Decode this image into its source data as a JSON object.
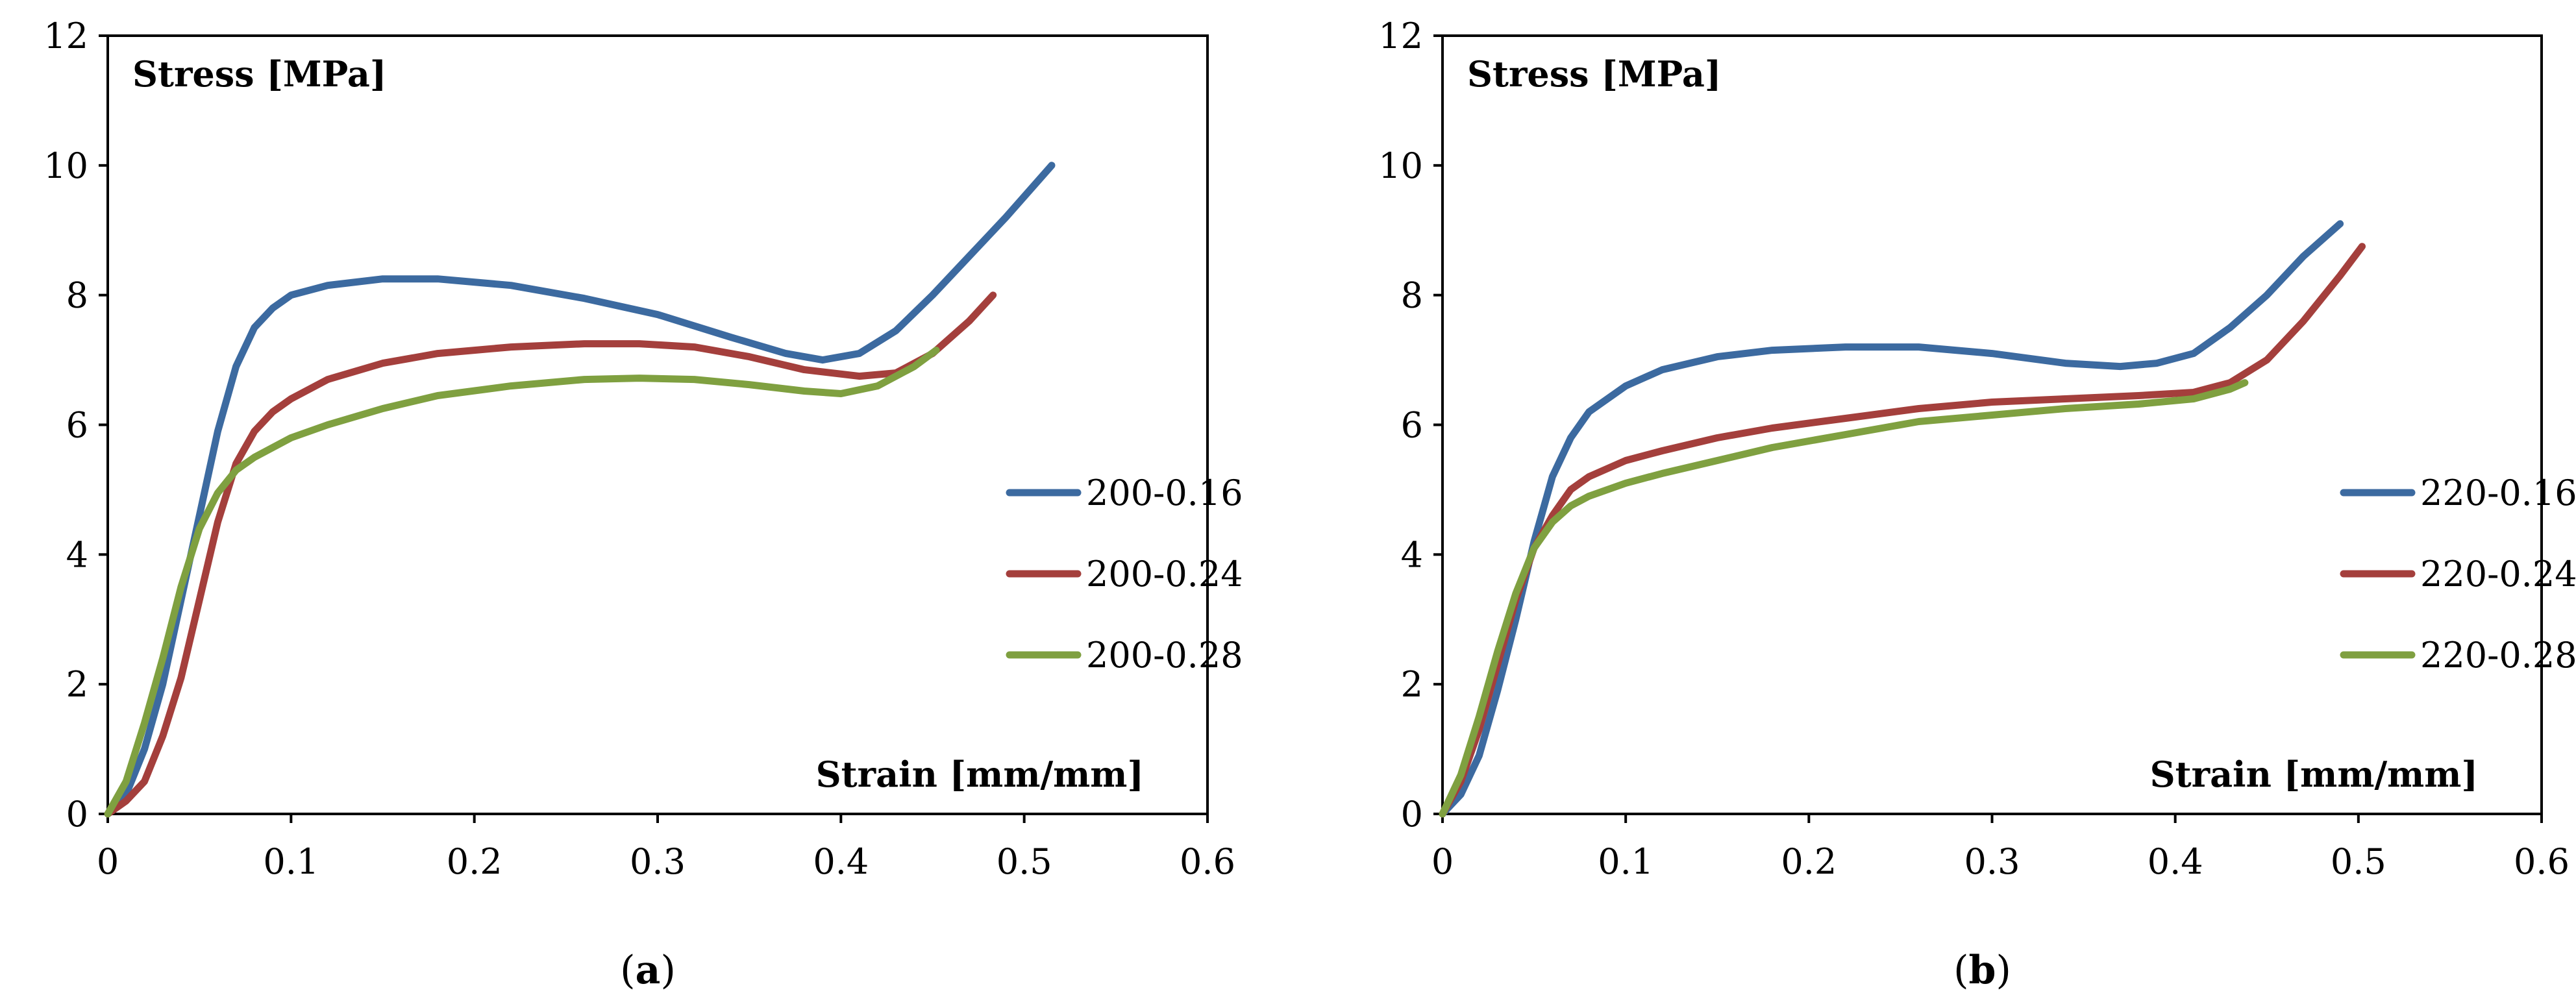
{
  "chart_data": [
    {
      "type": "line",
      "panel": "a",
      "caption": {
        "open": "(",
        "letter": "a",
        "close": ")"
      },
      "ylabel": "Stress [MPa]",
      "xlabel": "Strain [mm/mm]",
      "xlim": [
        0,
        0.6
      ],
      "ylim": [
        0,
        12
      ],
      "xticks": [
        "0",
        "0.1",
        "0.2",
        "0.3",
        "0.4",
        "0.5",
        "0.6"
      ],
      "yticks": [
        "0",
        "2",
        "4",
        "6",
        "8",
        "10",
        "12"
      ],
      "grid": false,
      "legend_position": "right",
      "series": [
        {
          "name": "200-0.16",
          "color": "#3C6AA0",
          "x": [
            0,
            0.01,
            0.02,
            0.03,
            0.04,
            0.05,
            0.06,
            0.07,
            0.08,
            0.09,
            0.1,
            0.12,
            0.15,
            0.18,
            0.22,
            0.26,
            0.3,
            0.34,
            0.37,
            0.39,
            0.41,
            0.43,
            0.45,
            0.47,
            0.49,
            0.515
          ],
          "y": [
            0,
            0.3,
            1.0,
            2.0,
            3.3,
            4.6,
            5.9,
            6.9,
            7.5,
            7.8,
            8.0,
            8.15,
            8.25,
            8.25,
            8.15,
            7.95,
            7.7,
            7.35,
            7.1,
            7.0,
            7.1,
            7.45,
            8.0,
            8.6,
            9.2,
            10.0
          ]
        },
        {
          "name": "200-0.24",
          "color": "#A43F3C",
          "x": [
            0,
            0.01,
            0.02,
            0.03,
            0.04,
            0.05,
            0.06,
            0.07,
            0.08,
            0.09,
            0.1,
            0.12,
            0.15,
            0.18,
            0.22,
            0.26,
            0.29,
            0.32,
            0.35,
            0.38,
            0.41,
            0.43,
            0.45,
            0.47,
            0.483
          ],
          "y": [
            0,
            0.2,
            0.5,
            1.2,
            2.1,
            3.3,
            4.5,
            5.4,
            5.9,
            6.2,
            6.4,
            6.7,
            6.95,
            7.1,
            7.2,
            7.25,
            7.25,
            7.2,
            7.05,
            6.85,
            6.75,
            6.8,
            7.1,
            7.6,
            8.0
          ]
        },
        {
          "name": "200-0.28",
          "color": "#7FA040",
          "x": [
            0,
            0.01,
            0.02,
            0.03,
            0.04,
            0.05,
            0.06,
            0.07,
            0.08,
            0.09,
            0.1,
            0.12,
            0.15,
            0.18,
            0.22,
            0.26,
            0.29,
            0.32,
            0.35,
            0.38,
            0.4,
            0.42,
            0.44,
            0.452
          ],
          "y": [
            0,
            0.5,
            1.4,
            2.4,
            3.5,
            4.4,
            4.95,
            5.3,
            5.5,
            5.65,
            5.8,
            6.0,
            6.25,
            6.45,
            6.6,
            6.7,
            6.72,
            6.7,
            6.62,
            6.52,
            6.48,
            6.6,
            6.9,
            7.15
          ]
        }
      ]
    },
    {
      "type": "line",
      "panel": "b",
      "caption": {
        "open": "(",
        "letter": "b",
        "close": ")"
      },
      "ylabel": "Stress [MPa]",
      "xlabel": "Strain [mm/mm]",
      "xlim": [
        0,
        0.6
      ],
      "ylim": [
        0,
        12
      ],
      "xticks": [
        "0",
        "0.1",
        "0.2",
        "0.3",
        "0.4",
        "0.5",
        "0.6"
      ],
      "yticks": [
        "0",
        "2",
        "4",
        "6",
        "8",
        "10",
        "12"
      ],
      "grid": false,
      "legend_position": "right",
      "series": [
        {
          "name": "220-0.16",
          "color": "#3C6AA0",
          "x": [
            0,
            0.01,
            0.02,
            0.03,
            0.04,
            0.05,
            0.06,
            0.07,
            0.08,
            0.1,
            0.12,
            0.15,
            0.18,
            0.22,
            0.26,
            0.3,
            0.34,
            0.37,
            0.39,
            0.41,
            0.43,
            0.45,
            0.47,
            0.49
          ],
          "y": [
            0,
            0.3,
            0.9,
            1.9,
            3.0,
            4.2,
            5.2,
            5.8,
            6.2,
            6.6,
            6.85,
            7.05,
            7.15,
            7.2,
            7.2,
            7.1,
            6.95,
            6.9,
            6.95,
            7.1,
            7.5,
            8.0,
            8.6,
            9.1
          ]
        },
        {
          "name": "220-0.24",
          "color": "#A43F3C",
          "x": [
            0,
            0.01,
            0.02,
            0.03,
            0.04,
            0.05,
            0.06,
            0.07,
            0.08,
            0.1,
            0.12,
            0.15,
            0.18,
            0.22,
            0.26,
            0.3,
            0.34,
            0.38,
            0.41,
            0.43,
            0.45,
            0.47,
            0.49,
            0.502
          ],
          "y": [
            0,
            0.5,
            1.3,
            2.3,
            3.3,
            4.1,
            4.6,
            5.0,
            5.2,
            5.45,
            5.6,
            5.8,
            5.95,
            6.1,
            6.25,
            6.35,
            6.4,
            6.45,
            6.5,
            6.65,
            7.0,
            7.6,
            8.3,
            8.75
          ]
        },
        {
          "name": "220-0.28",
          "color": "#7FA040",
          "x": [
            0,
            0.01,
            0.02,
            0.03,
            0.04,
            0.05,
            0.06,
            0.07,
            0.08,
            0.1,
            0.12,
            0.15,
            0.18,
            0.22,
            0.26,
            0.3,
            0.34,
            0.38,
            0.41,
            0.43,
            0.438
          ],
          "y": [
            0,
            0.6,
            1.5,
            2.5,
            3.4,
            4.1,
            4.5,
            4.75,
            4.9,
            5.1,
            5.25,
            5.45,
            5.65,
            5.85,
            6.05,
            6.15,
            6.25,
            6.32,
            6.4,
            6.55,
            6.65
          ]
        }
      ]
    }
  ]
}
